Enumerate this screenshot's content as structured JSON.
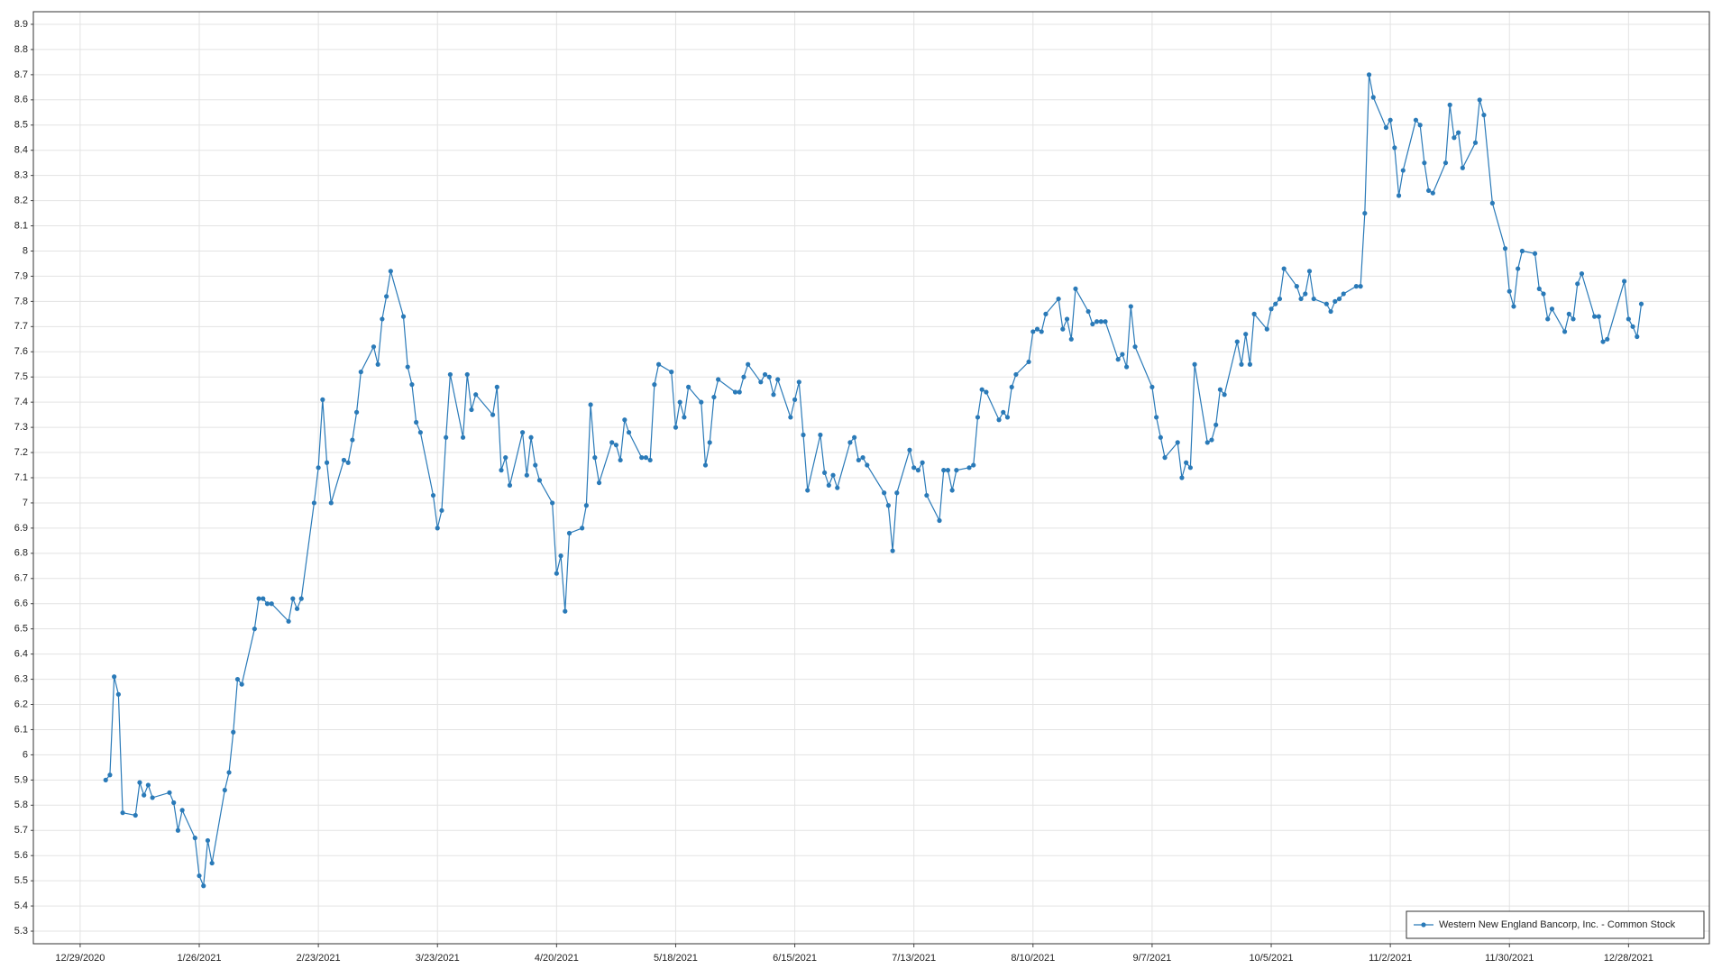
{
  "chart_data": {
    "type": "line",
    "x": [
      "1/4/2021",
      "1/5/2021",
      "1/6/2021",
      "1/7/2021",
      "1/8/2021",
      "1/11/2021",
      "1/12/2021",
      "1/13/2021",
      "1/14/2021",
      "1/15/2021",
      "1/19/2021",
      "1/20/2021",
      "1/21/2021",
      "1/22/2021",
      "1/25/2021",
      "1/26/2021",
      "1/27/2021",
      "1/28/2021",
      "1/29/2021",
      "2/1/2021",
      "2/2/2021",
      "2/3/2021",
      "2/4/2021",
      "2/5/2021",
      "2/8/2021",
      "2/9/2021",
      "2/10/2021",
      "2/11/2021",
      "2/12/2021",
      "2/16/2021",
      "2/17/2021",
      "2/18/2021",
      "2/19/2021",
      "2/22/2021",
      "2/23/2021",
      "2/24/2021",
      "2/25/2021",
      "2/26/2021",
      "3/1/2021",
      "3/2/2021",
      "3/3/2021",
      "3/4/2021",
      "3/5/2021",
      "3/8/2021",
      "3/9/2021",
      "3/10/2021",
      "3/11/2021",
      "3/12/2021",
      "3/15/2021",
      "3/16/2021",
      "3/17/2021",
      "3/18/2021",
      "3/19/2021",
      "3/22/2021",
      "3/23/2021",
      "3/24/2021",
      "3/25/2021",
      "3/26/2021",
      "3/29/2021",
      "3/30/2021",
      "3/31/2021",
      "4/1/2021",
      "4/5/2021",
      "4/6/2021",
      "4/7/2021",
      "4/8/2021",
      "4/9/2021",
      "4/12/2021",
      "4/13/2021",
      "4/14/2021",
      "4/15/2021",
      "4/16/2021",
      "4/19/2021",
      "4/20/2021",
      "4/21/2021",
      "4/22/2021",
      "4/23/2021",
      "4/26/2021",
      "4/27/2021",
      "4/28/2021",
      "4/29/2021",
      "4/30/2021",
      "5/3/2021",
      "5/4/2021",
      "5/5/2021",
      "5/6/2021",
      "5/7/2021",
      "5/10/2021",
      "5/11/2021",
      "5/12/2021",
      "5/13/2021",
      "5/14/2021",
      "5/17/2021",
      "5/18/2021",
      "5/19/2021",
      "5/20/2021",
      "5/21/2021",
      "5/24/2021",
      "5/25/2021",
      "5/26/2021",
      "5/27/2021",
      "5/28/2021",
      "6/1/2021",
      "6/2/2021",
      "6/3/2021",
      "6/4/2021",
      "6/7/2021",
      "6/8/2021",
      "6/9/2021",
      "6/10/2021",
      "6/11/2021",
      "6/14/2021",
      "6/15/2021",
      "6/16/2021",
      "6/17/2021",
      "6/18/2021",
      "6/21/2021",
      "6/22/2021",
      "6/23/2021",
      "6/24/2021",
      "6/25/2021",
      "6/28/2021",
      "6/29/2021",
      "6/30/2021",
      "7/1/2021",
      "7/2/2021",
      "7/6/2021",
      "7/7/2021",
      "7/8/2021",
      "7/9/2021",
      "7/12/2021",
      "7/13/2021",
      "7/14/2021",
      "7/15/2021",
      "7/16/2021",
      "7/19/2021",
      "7/20/2021",
      "7/21/2021",
      "7/22/2021",
      "7/23/2021",
      "7/26/2021",
      "7/27/2021",
      "7/28/2021",
      "7/29/2021",
      "7/30/2021",
      "8/2/2021",
      "8/3/2021",
      "8/4/2021",
      "8/5/2021",
      "8/6/2021",
      "8/9/2021",
      "8/10/2021",
      "8/11/2021",
      "8/12/2021",
      "8/13/2021",
      "8/16/2021",
      "8/17/2021",
      "8/18/2021",
      "8/19/2021",
      "8/20/2021",
      "8/23/2021",
      "8/24/2021",
      "8/25/2021",
      "8/26/2021",
      "8/27/2021",
      "8/30/2021",
      "8/31/2021",
      "9/1/2021",
      "9/2/2021",
      "9/3/2021",
      "9/7/2021",
      "9/8/2021",
      "9/9/2021",
      "9/10/2021",
      "9/13/2021",
      "9/14/2021",
      "9/15/2021",
      "9/16/2021",
      "9/17/2021",
      "9/20/2021",
      "9/21/2021",
      "9/22/2021",
      "9/23/2021",
      "9/24/2021",
      "9/27/2021",
      "9/28/2021",
      "9/29/2021",
      "9/30/2021",
      "10/1/2021",
      "10/4/2021",
      "10/5/2021",
      "10/6/2021",
      "10/7/2021",
      "10/8/2021",
      "10/11/2021",
      "10/12/2021",
      "10/13/2021",
      "10/14/2021",
      "10/15/2021",
      "10/18/2021",
      "10/19/2021",
      "10/20/2021",
      "10/21/2021",
      "10/22/2021",
      "10/25/2021",
      "10/26/2021",
      "10/27/2021",
      "10/28/2021",
      "10/29/2021",
      "11/1/2021",
      "11/2/2021",
      "11/3/2021",
      "11/4/2021",
      "11/5/2021",
      "11/8/2021",
      "11/9/2021",
      "11/10/2021",
      "11/11/2021",
      "11/12/2021",
      "11/15/2021",
      "11/16/2021",
      "11/17/2021",
      "11/18/2021",
      "11/19/2021",
      "11/22/2021",
      "11/23/2021",
      "11/24/2021",
      "11/26/2021",
      "11/29/2021",
      "11/30/2021",
      "12/1/2021",
      "12/2/2021",
      "12/3/2021",
      "12/6/2021",
      "12/7/2021",
      "12/8/2021",
      "12/9/2021",
      "12/10/2021",
      "12/13/2021",
      "12/14/2021",
      "12/15/2021",
      "12/16/2021",
      "12/17/2021",
      "12/20/2021",
      "12/21/2021",
      "12/22/2021",
      "12/23/2021",
      "12/27/2021",
      "12/28/2021",
      "12/29/2021",
      "12/30/2021",
      "12/31/2021"
    ],
    "series": [
      {
        "name": "Western New England Bancorp, Inc. - Common Stock",
        "color": "#2a7ab8",
        "values": [
          5.9,
          5.92,
          6.31,
          6.24,
          5.77,
          5.76,
          5.89,
          5.84,
          5.88,
          5.83,
          5.85,
          5.81,
          5.7,
          5.78,
          5.67,
          5.52,
          5.48,
          5.66,
          5.57,
          5.86,
          5.93,
          6.09,
          6.3,
          6.28,
          6.5,
          6.62,
          6.62,
          6.6,
          6.6,
          6.53,
          6.62,
          6.58,
          6.62,
          7.0,
          7.14,
          7.41,
          7.16,
          7.0,
          7.17,
          7.16,
          7.25,
          7.36,
          7.52,
          7.62,
          7.55,
          7.73,
          7.82,
          7.92,
          7.74,
          7.54,
          7.47,
          7.32,
          7.28,
          7.03,
          6.9,
          6.97,
          7.26,
          7.51,
          7.26,
          7.51,
          7.37,
          7.43,
          7.35,
          7.46,
          7.13,
          7.18,
          7.07,
          7.28,
          7.11,
          7.26,
          7.15,
          7.09,
          7.0,
          6.72,
          6.79,
          6.57,
          6.88,
          6.9,
          6.99,
          7.39,
          7.18,
          7.08,
          7.24,
          7.23,
          7.17,
          7.33,
          7.28,
          7.18,
          7.18,
          7.17,
          7.47,
          7.55,
          7.52,
          7.3,
          7.4,
          7.34,
          7.46,
          7.4,
          7.15,
          7.24,
          7.42,
          7.49,
          7.44,
          7.44,
          7.5,
          7.55,
          7.48,
          7.51,
          7.5,
          7.43,
          7.49,
          7.34,
          7.41,
          7.48,
          7.27,
          7.05,
          7.27,
          7.12,
          7.07,
          7.11,
          7.06,
          7.24,
          7.26,
          7.17,
          7.18,
          7.15,
          7.04,
          6.99,
          6.81,
          7.04,
          7.21,
          7.14,
          7.13,
          7.16,
          7.03,
          6.93,
          7.13,
          7.13,
          7.05,
          7.13,
          7.14,
          7.15,
          7.34,
          7.45,
          7.44,
          7.33,
          7.36,
          7.34,
          7.46,
          7.51,
          7.56,
          7.68,
          7.69,
          7.68,
          7.75,
          7.81,
          7.69,
          7.73,
          7.65,
          7.85,
          7.76,
          7.71,
          7.72,
          7.72,
          7.72,
          7.57,
          7.59,
          7.54,
          7.78,
          7.62,
          7.46,
          7.34,
          7.26,
          7.18,
          7.24,
          7.1,
          7.16,
          7.14,
          7.55,
          7.24,
          7.25,
          7.31,
          7.45,
          7.43,
          7.64,
          7.55,
          7.67,
          7.55,
          7.75,
          7.69,
          7.77,
          7.79,
          7.81,
          7.93,
          7.86,
          7.81,
          7.83,
          7.92,
          7.81,
          7.79,
          7.76,
          7.8,
          7.81,
          7.83,
          7.86,
          7.86,
          8.15,
          8.7,
          8.61,
          8.49,
          8.52,
          8.41,
          8.22,
          8.32,
          8.52,
          8.5,
          8.35,
          8.24,
          8.23,
          8.35,
          8.58,
          8.45,
          8.47,
          8.33,
          8.43,
          8.6,
          8.54,
          8.19,
          8.01,
          7.84,
          7.78,
          7.93,
          8.0,
          7.99,
          7.85,
          7.83,
          7.73,
          7.77,
          7.68,
          7.75,
          7.73,
          7.87,
          7.91,
          7.74,
          7.74,
          7.64,
          7.65,
          7.88,
          7.73,
          7.7,
          7.66,
          7.79
        ]
      }
    ],
    "xlim": [
      "12/18/2020",
      "1/16/2022"
    ],
    "xticks": [
      "12/29/2020",
      "1/26/2021",
      "2/23/2021",
      "3/23/2021",
      "4/20/2021",
      "5/18/2021",
      "6/15/2021",
      "7/13/2021",
      "8/10/2021",
      "9/7/2021",
      "10/5/2021",
      "11/2/2021",
      "11/30/2021",
      "12/28/2021"
    ],
    "ylim": [
      5.25,
      8.95
    ],
    "yticks": [
      5.3,
      5.4,
      5.5,
      5.6,
      5.7,
      5.8,
      5.9,
      6,
      6.1,
      6.2,
      6.3,
      6.4,
      6.5,
      6.6,
      6.7,
      6.8,
      6.9,
      7,
      7.1,
      7.2,
      7.3,
      7.4,
      7.5,
      7.6,
      7.7,
      7.8,
      7.9,
      8,
      8.1,
      8.2,
      8.3,
      8.4,
      8.5,
      8.6,
      8.7,
      8.8,
      8.9
    ],
    "grid": true,
    "legend": "lower right"
  }
}
